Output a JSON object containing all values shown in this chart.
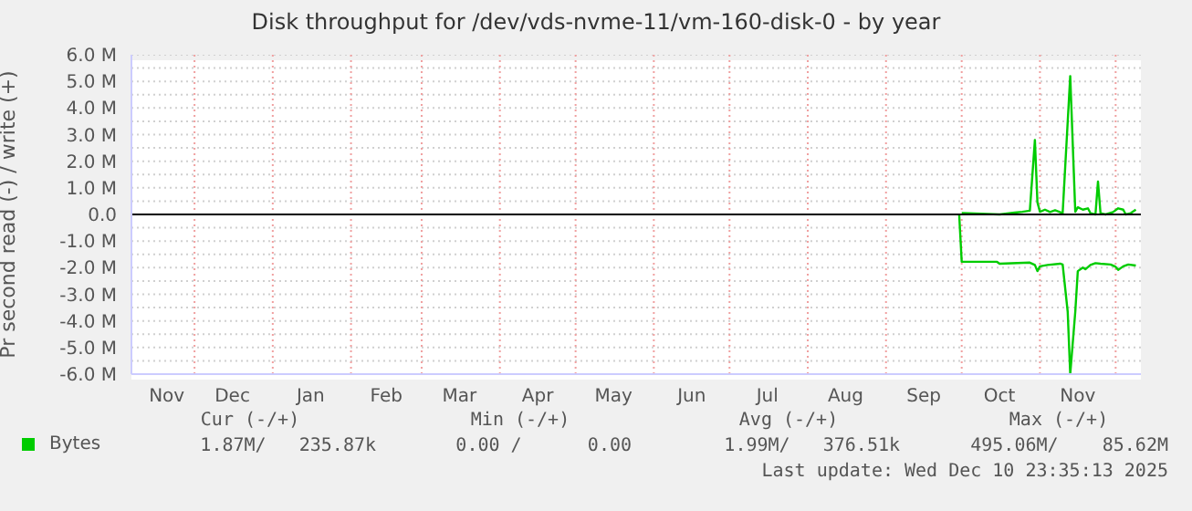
{
  "chart_data": {
    "type": "line",
    "title": "Disk throughput for /dev/vds-nvme-11/vm-160-disk-0 - by year",
    "ylabel": "Pr second read (-) / write (+)",
    "xlim": [
      "2024-11-06",
      "2025-12-11"
    ],
    "xticks": [
      {
        "value": "2024-11-20",
        "label": "Nov"
      },
      {
        "value": "2024-12-01",
        "label": null
      },
      {
        "value": "2024-12-16",
        "label": "Dec"
      },
      {
        "value": "2025-01-01",
        "label": null
      },
      {
        "value": "2025-01-16",
        "label": "Jan"
      },
      {
        "value": "2025-02-01",
        "label": null
      },
      {
        "value": "2025-02-15",
        "label": "Feb"
      },
      {
        "value": "2025-03-01",
        "label": null
      },
      {
        "value": "2025-03-16",
        "label": "Mar"
      },
      {
        "value": "2025-04-01",
        "label": null
      },
      {
        "value": "2025-04-16",
        "label": "Apr"
      },
      {
        "value": "2025-05-01",
        "label": null
      },
      {
        "value": "2025-05-16",
        "label": "May"
      },
      {
        "value": "2025-06-01",
        "label": null
      },
      {
        "value": "2025-06-16",
        "label": "Jun"
      },
      {
        "value": "2025-07-01",
        "label": null
      },
      {
        "value": "2025-07-16",
        "label": "Jul"
      },
      {
        "value": "2025-08-01",
        "label": null
      },
      {
        "value": "2025-08-16",
        "label": "Aug"
      },
      {
        "value": "2025-09-01",
        "label": null
      },
      {
        "value": "2025-09-16",
        "label": "Sep"
      },
      {
        "value": "2025-10-01",
        "label": null
      },
      {
        "value": "2025-10-16",
        "label": "Oct"
      },
      {
        "value": "2025-11-01",
        "label": null
      },
      {
        "value": "2025-11-16",
        "label": "Nov"
      },
      {
        "value": "2025-12-01",
        "label": null
      }
    ],
    "ylim": [
      -6,
      6
    ],
    "yticks": [
      {
        "value": 6,
        "label": "6.0 M"
      },
      {
        "value": 5.5,
        "label": null
      },
      {
        "value": 5,
        "label": "5.0 M"
      },
      {
        "value": 4.5,
        "label": null
      },
      {
        "value": 4,
        "label": "4.0 M"
      },
      {
        "value": 3.5,
        "label": null
      },
      {
        "value": 3,
        "label": "3.0 M"
      },
      {
        "value": 2.5,
        "label": null
      },
      {
        "value": 2,
        "label": "2.0 M"
      },
      {
        "value": 1.5,
        "label": null
      },
      {
        "value": 1,
        "label": "1.0 M"
      },
      {
        "value": 0.5,
        "label": null
      },
      {
        "value": 0,
        "label": "0.0"
      },
      {
        "value": -0.5,
        "label": null
      },
      {
        "value": -1,
        "label": "-1.0 M"
      },
      {
        "value": -1.5,
        "label": null
      },
      {
        "value": -2,
        "label": "-2.0 M"
      },
      {
        "value": -2.5,
        "label": null
      },
      {
        "value": -3,
        "label": "-3.0 M"
      },
      {
        "value": -3.5,
        "label": null
      },
      {
        "value": -4,
        "label": "-4.0 M"
      },
      {
        "value": -4.5,
        "label": null
      },
      {
        "value": -5,
        "label": "-5.0 M"
      },
      {
        "value": -5.5,
        "label": null
      },
      {
        "value": -6,
        "label": "-6.0 M"
      }
    ],
    "grid": true,
    "legend": "bottom left",
    "marker": "none",
    "line_style": "solid",
    "ref_lines": [
      {
        "axis": "y",
        "value": 0,
        "color": "#000000"
      }
    ],
    "series": [
      {
        "name": "Bytes",
        "color": "#00cc00",
        "x": [
          "2025-10-01",
          "2025-10-16",
          "2025-10-22",
          "2025-10-25",
          "2025-10-28",
          "2025-10-30",
          "2025-10-31",
          "2025-11-01",
          "2025-11-03",
          "2025-11-05",
          "2025-11-07",
          "2025-11-10",
          "2025-11-13",
          "2025-11-15",
          "2025-11-16",
          "2025-11-18",
          "2025-11-20",
          "2025-11-21",
          "2025-11-23",
          "2025-11-24",
          "2025-11-25",
          "2025-11-27",
          "2025-11-30",
          "2025-12-02",
          "2025-12-04",
          "2025-12-05",
          "2025-12-07",
          "2025-12-09"
        ],
        "values": [
          0.05,
          0,
          0.07,
          0.1,
          0.14,
          2.8,
          0.46,
          0.1,
          0.18,
          0.09,
          0.16,
          0.05,
          5.2,
          0.1,
          0.27,
          0.18,
          0.23,
          0.05,
          0,
          1.24,
          0.05,
          0,
          0.09,
          0.23,
          0.18,
          0,
          0.05,
          0.18
        ]
      },
      {
        "color": "#00cc00",
        "x": [
          "2025-09-30",
          "2025-10-01",
          "2025-10-15",
          "2025-10-16",
          "2025-10-28",
          "2025-10-30",
          "2025-10-31",
          "2025-11-01",
          "2025-11-04",
          "2025-11-09",
          "2025-11-10",
          "2025-11-12",
          "2025-11-13",
          "2025-11-15",
          "2025-11-16",
          "2025-11-18",
          "2025-11-19",
          "2025-11-21",
          "2025-11-23",
          "2025-11-25",
          "2025-11-29",
          "2025-12-01",
          "2025-12-02",
          "2025-12-04",
          "2025-12-06",
          "2025-12-09"
        ],
        "values": [
          0,
          -1.78,
          -1.78,
          -1.85,
          -1.81,
          -1.9,
          -2.13,
          -1.95,
          -1.9,
          -1.85,
          -1.88,
          -3.66,
          -6.0,
          -3.66,
          -2.13,
          -2.0,
          -2.06,
          -1.9,
          -1.83,
          -1.85,
          -1.88,
          -1.97,
          -2.08,
          -1.95,
          -1.88,
          -1.92
        ]
      }
    ],
    "annotations": [
      "Cur (-/+)",
      "Min (-/+)",
      "Avg (-/+)",
      "Max (-/+)",
      "1.87M/   235.87k",
      "0.00 /      0.00",
      "1.99M/   376.51k",
      "495.06M/    85.62M",
      "Last update: Wed Dec 10 23:35:13 2025"
    ]
  }
}
